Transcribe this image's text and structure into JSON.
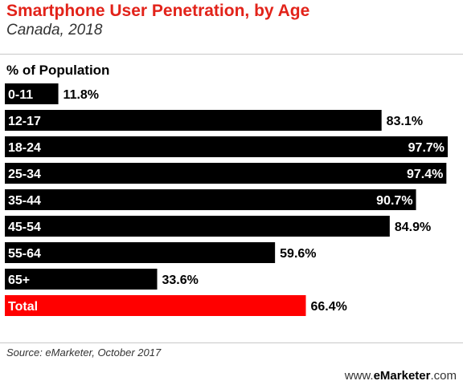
{
  "chart_data": {
    "type": "bar",
    "orientation": "horizontal",
    "title": "Smartphone User Penetration, by Age",
    "subtitle": "Canada, 2018",
    "ylabel": "% of Population",
    "categories": [
      "0-11",
      "12-17",
      "18-24",
      "25-34",
      "35-44",
      "45-54",
      "55-64",
      "65+",
      "Total"
    ],
    "values": [
      11.8,
      83.1,
      97.7,
      97.4,
      90.7,
      84.9,
      59.6,
      33.6,
      66.4
    ],
    "value_labels": [
      "11.8%",
      "83.1%",
      "97.7%",
      "97.4%",
      "90.7%",
      "84.9%",
      "59.6%",
      "33.6%",
      "66.4%"
    ],
    "xlim": [
      0,
      100
    ],
    "grid": false,
    "colors": {
      "default_bar": "#000000",
      "highlight_bar": "#ff0000",
      "highlight_category": "Total"
    }
  },
  "footer": {
    "source": "Source: eMarketer, October 2017",
    "brand_prefix": "www.",
    "brand_name": "eMarketer",
    "brand_suffix": ".com"
  }
}
